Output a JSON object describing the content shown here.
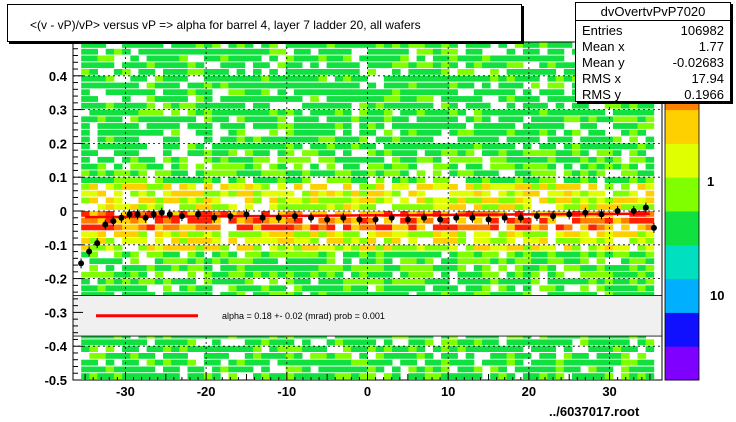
{
  "chart_data": {
    "type": "heatmap",
    "title": "<(v - vP)/vP> versus  vP => alpha for barrel 4, layer 7 ladder 20, all wafers",
    "xlim": [
      -36.5,
      36.5
    ],
    "ylim": [
      -0.5,
      0.5
    ],
    "x_ticks": [
      -30,
      -20,
      -10,
      0,
      10,
      20,
      30
    ],
    "y_ticks": [
      -0.5,
      -0.4,
      -0.3,
      -0.2,
      -0.1,
      0,
      0.1,
      0.2,
      0.3,
      0.4
    ],
    "y_tick_labels": [
      "-0.5",
      "-0.4",
      "-0.3",
      "-0.2",
      "-0.1",
      "0",
      "0.1",
      "0.2",
      "0.3",
      "0.4"
    ],
    "grid": true,
    "colorbar": {
      "scale": "log",
      "labels": [
        "1",
        "10"
      ],
      "colors": [
        "#8000ff",
        "#1010ff",
        "#00b0ff",
        "#00e0c0",
        "#10e040",
        "#80ff00",
        "#e0ff00",
        "#ffd000",
        "#ff8000",
        "#ff2000"
      ]
    },
    "profile_points": [
      {
        "x": -35.5,
        "y": -0.155
      },
      {
        "x": -34.5,
        "y": -0.12
      },
      {
        "x": -33.5,
        "y": -0.095
      },
      {
        "x": -32.5,
        "y": -0.04
      },
      {
        "x": -31.5,
        "y": -0.03
      },
      {
        "x": -30.5,
        "y": -0.02
      },
      {
        "x": -29.5,
        "y": -0.01
      },
      {
        "x": -28.5,
        "y": -0.01
      },
      {
        "x": -27.5,
        "y": -0.02
      },
      {
        "x": -26.5,
        "y": -0.01
      },
      {
        "x": -25.5,
        "y": -0.005
      },
      {
        "x": -24.5,
        "y": -0.01
      },
      {
        "x": -23,
        "y": -0.015
      },
      {
        "x": -21,
        "y": -0.01
      },
      {
        "x": -19,
        "y": -0.02
      },
      {
        "x": -17,
        "y": -0.015
      },
      {
        "x": -15,
        "y": -0.01
      },
      {
        "x": -13,
        "y": -0.02
      },
      {
        "x": -11,
        "y": -0.02
      },
      {
        "x": -9,
        "y": -0.015
      },
      {
        "x": -7,
        "y": -0.02
      },
      {
        "x": -5,
        "y": -0.025
      },
      {
        "x": -3,
        "y": -0.02
      },
      {
        "x": -1,
        "y": -0.025
      },
      {
        "x": 1,
        "y": -0.025
      },
      {
        "x": 3,
        "y": -0.02
      },
      {
        "x": 5,
        "y": -0.025
      },
      {
        "x": 7,
        "y": -0.02
      },
      {
        "x": 9,
        "y": -0.025
      },
      {
        "x": 11,
        "y": -0.02
      },
      {
        "x": 13,
        "y": -0.02
      },
      {
        "x": 15,
        "y": -0.025
      },
      {
        "x": 17,
        "y": -0.02
      },
      {
        "x": 19,
        "y": -0.02
      },
      {
        "x": 21,
        "y": -0.015
      },
      {
        "x": 23,
        "y": -0.015
      },
      {
        "x": 25,
        "y": -0.01
      },
      {
        "x": 27,
        "y": -0.005
      },
      {
        "x": 29,
        "y": -0.01
      },
      {
        "x": 31,
        "y": 0.0
      },
      {
        "x": 33,
        "y": 0.0
      },
      {
        "x": 34.5,
        "y": 0.01
      },
      {
        "x": 35.5,
        "y": -0.05
      }
    ],
    "fit_line": {
      "x": [
        -35,
        35
      ],
      "y": [
        -0.018,
        -0.008
      ],
      "color": "#ff0000"
    },
    "legend": {
      "text": "alpha =    0.18 +-  0.02 (mrad) prob = 0.001",
      "line_color": "#ff0000",
      "y_range": [
        -0.37,
        -0.25
      ]
    },
    "stats": {
      "name": "dvOvertvPvP7020",
      "rows": [
        {
          "label": "Entries",
          "value": "106982"
        },
        {
          "label": "Mean x",
          "value": "1.77"
        },
        {
          "label": "Mean y",
          "value": "-0.02683"
        },
        {
          "label": "RMS x",
          "value": "17.94"
        },
        {
          "label": "RMS y",
          "value": "0.1966"
        }
      ]
    }
  },
  "footer": "../6037017.root"
}
